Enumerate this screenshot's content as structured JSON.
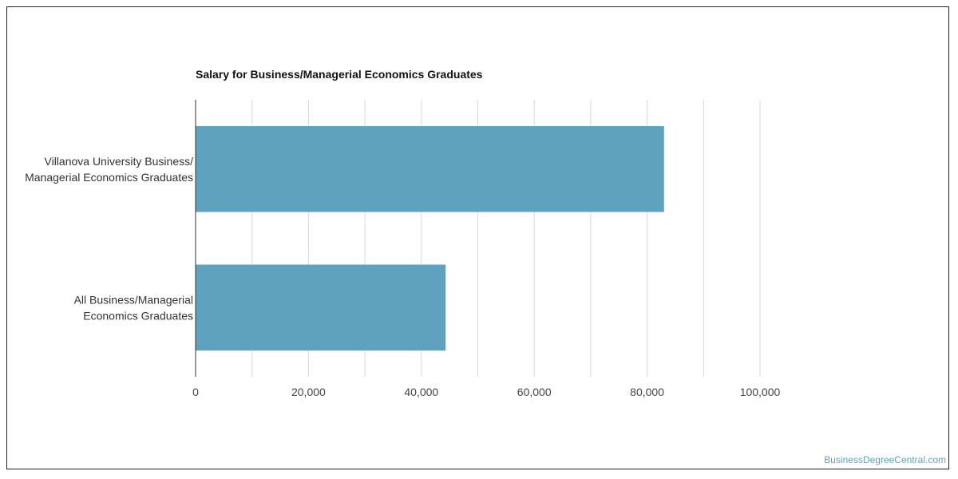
{
  "chart_data": {
    "type": "bar",
    "orientation": "horizontal",
    "title": "Salary for Business/Managerial Economics Graduates",
    "categories": [
      "Villanova University Business/ Managerial Economics Graduates",
      "All Business/Managerial Economics Graduates"
    ],
    "category_lines": [
      [
        "Villanova University Business/",
        "Managerial Economics Graduates"
      ],
      [
        "All Business/Managerial",
        "Economics Graduates"
      ]
    ],
    "values": [
      83000,
      44300
    ],
    "xlim": [
      0,
      100000
    ],
    "xticks": [
      0,
      20000,
      40000,
      60000,
      80000,
      100000
    ],
    "xtick_labels": [
      "0",
      "20,000",
      "40,000",
      "60,000",
      "80,000",
      "100,000"
    ],
    "xlabel": "",
    "ylabel": "",
    "grid": true,
    "legend": "none",
    "bar_color": "#5fa2be"
  },
  "watermark": "BusinessDegreeCentral.com"
}
